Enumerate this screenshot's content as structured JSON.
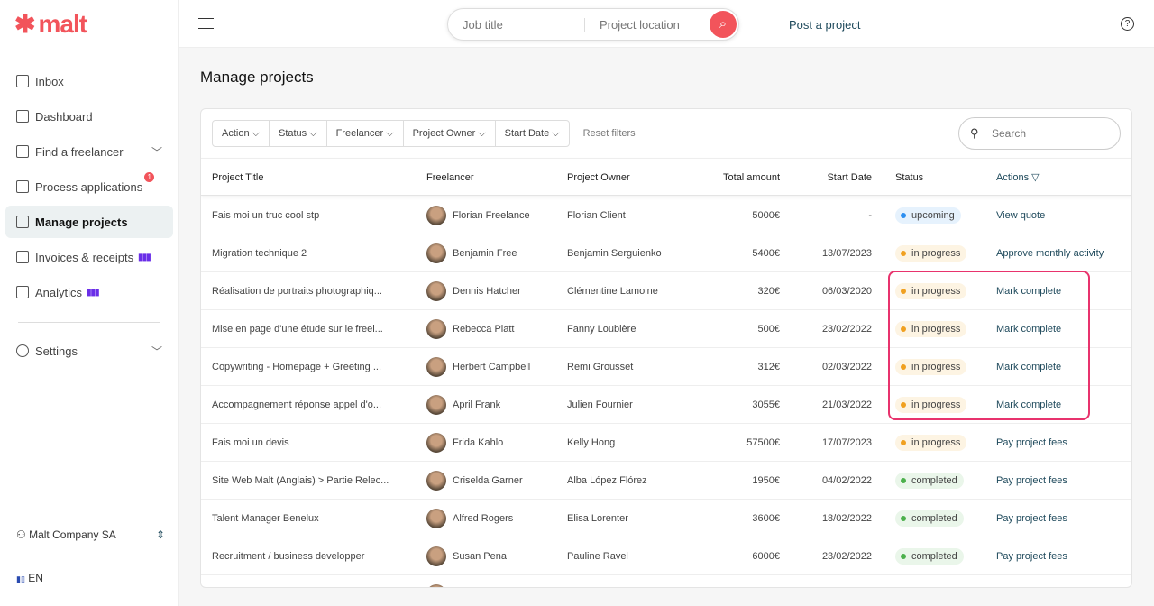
{
  "brand": {
    "name": "malt",
    "color": "#f2545b"
  },
  "sidebar": {
    "items": [
      {
        "label": "Inbox",
        "icon": "chat-icon"
      },
      {
        "label": "Dashboard",
        "icon": "dashboard-icon"
      },
      {
        "label": "Find a freelancer",
        "icon": "search-person-icon",
        "expandable": true
      },
      {
        "label": "Process applications",
        "icon": "applications-icon",
        "badge": "1"
      },
      {
        "label": "Manage projects",
        "icon": "clipboard-icon",
        "active": true
      },
      {
        "label": "Invoices & receipts",
        "icon": "invoice-icon",
        "premium": true
      },
      {
        "label": "Analytics",
        "icon": "pie-chart-icon",
        "premium": true
      }
    ],
    "settings": "Settings",
    "company": "Malt Company SA",
    "language": "EN"
  },
  "header": {
    "job_placeholder": "Job title",
    "location_placeholder": "Project location",
    "post": "Post a project"
  },
  "page": {
    "title": "Manage projects"
  },
  "filters": [
    "Action",
    "Status",
    "Freelancer",
    "Project Owner",
    "Start Date"
  ],
  "reset": "Reset filters",
  "search_placeholder": "Search",
  "table": {
    "columns": [
      "Project Title",
      "Freelancer",
      "Project Owner",
      "Total amount",
      "Start Date",
      "Status",
      "Actions ▽"
    ],
    "rows": [
      [
        "Fais moi un truc cool stp",
        "Florian Freelance",
        "Florian Client",
        "5000€",
        "-",
        "upcoming",
        "View quote"
      ],
      [
        "Migration technique 2",
        "Benjamin Free",
        "Benjamin Serguienko",
        "5400€",
        "13/07/2023",
        "in progress",
        "Approve monthly activity"
      ],
      [
        "Réalisation de portraits photographiq...",
        "Dennis Hatcher",
        "Clémentine Lamoine",
        "320€",
        "06/03/2020",
        "in progress",
        "Mark complete"
      ],
      [
        "Mise en page d'une étude sur le freel...",
        "Rebecca Platt",
        "Fanny Loubière",
        "500€",
        "23/02/2022",
        "in progress",
        "Mark complete"
      ],
      [
        "Copywriting - Homepage + Greeting ...",
        "Herbert Campbell",
        "Remi Grousset",
        "312€",
        "02/03/2022",
        "in progress",
        "Mark complete"
      ],
      [
        "Accompagnement réponse appel d'o...",
        "April Frank",
        "Julien Fournier",
        "3055€",
        "21/03/2022",
        "in progress",
        "Mark complete"
      ],
      [
        "Fais moi un devis",
        "Frida Kahlo",
        "Kelly Hong",
        "57500€",
        "17/07/2023",
        "in progress",
        "Pay project fees"
      ],
      [
        "Site Web Malt (Anglais) > Partie Relec...",
        "Criselda Garner",
        "Alba López Flórez",
        "1950€",
        "04/02/2022",
        "completed",
        "Pay project fees"
      ],
      [
        "Talent Manager Benelux",
        "Alfred Rogers",
        "Elisa Lorenter",
        "3600€",
        "18/02/2022",
        "completed",
        "Pay project fees"
      ],
      [
        "Recruitment / business developper",
        "Susan Pena",
        "Pauline Ravel",
        "6000€",
        "23/02/2022",
        "completed",
        "Pay project fees"
      ]
    ]
  },
  "status_colors": {
    "upcoming": {
      "bg": "#e6f2fd",
      "dot": "#2b8ef0"
    },
    "in progress": {
      "bg": "#fdf4e3",
      "dot": "#f0a020"
    },
    "completed": {
      "bg": "#eaf6ea",
      "dot": "#4cb04c"
    }
  },
  "highlight_color": "#e8336d"
}
